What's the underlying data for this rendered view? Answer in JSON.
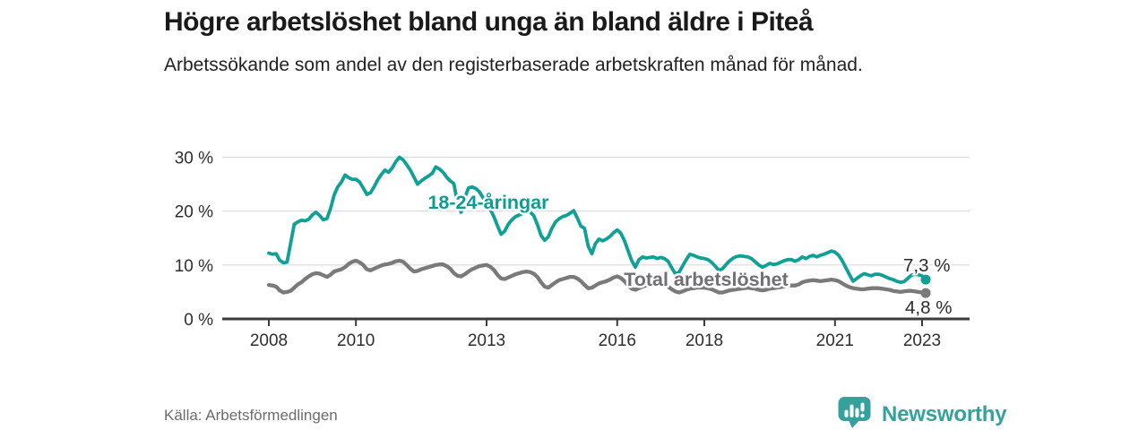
{
  "header": {
    "title": "Högre arbetslöshet bland unga än bland äldre i Piteå",
    "subtitle": "Arbetssökande som andel av den registerbaserade arbetskraften månad för månad."
  },
  "footer": {
    "source": "Källa: Arbetsförmedlingen",
    "brand": "Newsworthy"
  },
  "colors": {
    "youth_line": "#0fa096",
    "youth_label": "#0d9c92",
    "total_line": "#7a7a7a",
    "total_label": "#6f6f74",
    "title_text": "#1a1a1a",
    "axis_text": "#2e2e2e",
    "grid_line": "#dcdcdc",
    "axis_line": "#3c3c3c",
    "end_label_text": "#2b2b2b",
    "source_text": "#6b6b70",
    "brand_teal": "#35a19c"
  },
  "chart_data": {
    "type": "line",
    "title": "Högre arbetslöshet bland unga än bland äldre i Piteå",
    "subtitle": "Arbetssökande som andel av den registerbaserade arbetskraften månad för månad.",
    "unit": "%",
    "x_start": "2008-01",
    "x_end": "2023-02",
    "x_tick_years": [
      2008,
      2010,
      2013,
      2016,
      2018,
      2021,
      2023
    ],
    "x_tick_labels": [
      "2008",
      "2010",
      "2013",
      "2016",
      "2018",
      "2021",
      "2023"
    ],
    "y_ticks": [
      0,
      10,
      20,
      30
    ],
    "y_tick_labels": [
      "0 %",
      "10 %",
      "20 %",
      "30 %"
    ],
    "ylim": [
      0,
      31
    ],
    "grid": "horizontal",
    "legend_position": "inline-labels",
    "series": [
      {
        "name": "18-24-åringar",
        "color": "#0fa096",
        "label_color": "#0d9c92",
        "end_label": "7,3 %",
        "end_value": 7.3,
        "values": [
          12.2,
          12.0,
          12.1,
          10.9,
          10.4,
          10.5,
          14.0,
          17.6,
          18.0,
          18.3,
          18.2,
          18.5,
          19.3,
          19.8,
          19.2,
          18.4,
          18.6,
          20.5,
          23.0,
          24.5,
          25.4,
          26.7,
          26.2,
          25.9,
          25.9,
          25.4,
          24.3,
          23.1,
          23.4,
          24.5,
          25.8,
          26.8,
          27.6,
          27.2,
          28.0,
          29.2,
          30.0,
          29.5,
          28.6,
          27.6,
          26.3,
          25.0,
          25.6,
          26.1,
          26.5,
          27.0,
          28.2,
          27.8,
          27.2,
          26.3,
          25.6,
          25.1,
          21.5,
          19.8,
          22.5,
          24.3,
          24.5,
          24.2,
          23.6,
          22.5,
          21.3,
          20.4,
          19.0,
          17.3,
          15.7,
          16.3,
          17.6,
          18.4,
          19.0,
          19.3,
          19.6,
          19.8,
          19.8,
          19.2,
          17.5,
          15.5,
          14.6,
          15.2,
          16.8,
          18.0,
          18.6,
          19.0,
          19.2,
          19.6,
          20.1,
          18.7,
          17.2,
          16.8,
          13.5,
          12.1,
          14.0,
          14.8,
          14.5,
          14.8,
          15.3,
          16.0,
          16.5,
          15.9,
          14.5,
          12.6,
          10.8,
          9.6,
          11.0,
          11.5,
          11.3,
          11.4,
          11.5,
          11.2,
          11.4,
          11.2,
          10.7,
          9.5,
          8.4,
          8.6,
          9.8,
          11.0,
          12.0,
          11.8,
          11.5,
          11.3,
          11.2,
          11.0,
          10.5,
          9.8,
          9.0,
          9.3,
          10.1,
          10.8,
          11.3,
          11.6,
          11.7,
          11.6,
          11.5,
          11.2,
          10.6,
          10.0,
          9.6,
          9.9,
          10.3,
          10.1,
          10.2,
          10.5,
          10.8,
          11.0,
          11.0,
          10.7,
          11.0,
          11.5,
          11.2,
          11.6,
          11.8,
          11.5,
          11.8,
          12.0,
          12.3,
          12.6,
          12.4,
          11.8,
          10.8,
          9.5,
          8.2,
          7.0,
          7.5,
          8.0,
          8.4,
          8.2,
          8.0,
          8.3,
          8.3,
          8.1,
          7.8,
          7.5,
          7.3,
          7.0,
          6.8,
          6.9,
          7.5,
          8.1,
          8.3,
          8.2,
          8.0,
          7.3
        ]
      },
      {
        "name": "Total arbetslöshet",
        "color": "#7a7a7a",
        "label_color": "#6f6f74",
        "end_label": "4,8 %",
        "end_value": 4.8,
        "values": [
          6.3,
          6.2,
          6.0,
          5.3,
          4.9,
          5.0,
          5.2,
          5.8,
          6.4,
          6.8,
          7.4,
          7.9,
          8.3,
          8.5,
          8.4,
          8.1,
          7.8,
          8.2,
          8.8,
          9.0,
          9.2,
          9.6,
          10.2,
          10.6,
          10.8,
          10.5,
          10.0,
          9.2,
          9.0,
          9.3,
          9.6,
          9.9,
          10.1,
          10.2,
          10.4,
          10.7,
          10.8,
          10.6,
          10.0,
          9.3,
          8.8,
          8.9,
          9.2,
          9.4,
          9.6,
          9.8,
          10.0,
          10.1,
          10.1,
          9.8,
          9.3,
          8.5,
          8.0,
          7.9,
          8.3,
          8.8,
          9.2,
          9.5,
          9.8,
          9.9,
          10.0,
          9.7,
          9.1,
          8.2,
          7.5,
          7.4,
          7.7,
          8.0,
          8.3,
          8.5,
          8.7,
          8.8,
          8.7,
          8.4,
          7.8,
          6.8,
          6.0,
          5.8,
          6.3,
          6.8,
          7.2,
          7.4,
          7.6,
          7.8,
          7.8,
          7.5,
          7.0,
          6.3,
          5.7,
          5.8,
          6.2,
          6.6,
          6.8,
          7.0,
          7.3,
          7.7,
          7.9,
          7.6,
          7.0,
          6.2,
          5.6,
          5.4,
          5.7,
          6.0,
          6.2,
          6.3,
          6.4,
          6.5,
          6.5,
          6.3,
          6.0,
          5.5,
          5.1,
          4.9,
          5.1,
          5.4,
          5.6,
          5.7,
          5.8,
          5.8,
          5.8,
          5.7,
          5.5,
          5.2,
          4.9,
          4.9,
          5.1,
          5.3,
          5.4,
          5.5,
          5.6,
          5.7,
          5.8,
          5.7,
          5.6,
          5.4,
          5.3,
          5.4,
          5.6,
          5.7,
          5.8,
          5.9,
          6.0,
          6.2,
          6.2,
          6.2,
          6.4,
          6.8,
          7.0,
          7.1,
          7.2,
          7.1,
          7.0,
          7.1,
          7.2,
          7.3,
          7.2,
          7.0,
          6.6,
          6.2,
          5.9,
          5.7,
          5.6,
          5.5,
          5.5,
          5.6,
          5.7,
          5.7,
          5.7,
          5.6,
          5.5,
          5.4,
          5.2,
          5.1,
          5.0,
          5.1,
          5.2,
          5.2,
          5.1,
          5.0,
          4.9,
          4.8
        ]
      }
    ]
  }
}
